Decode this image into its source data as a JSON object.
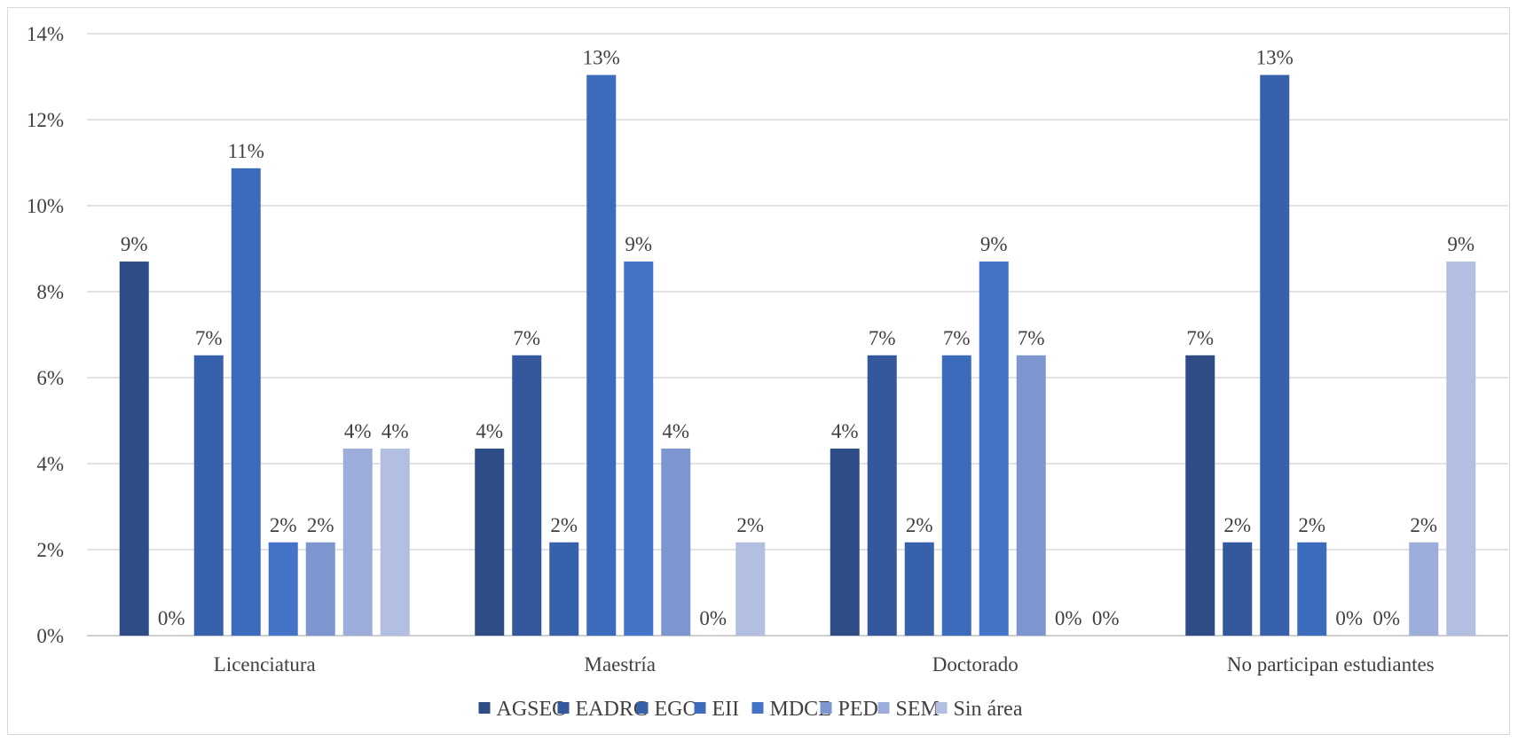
{
  "chart_data": {
    "type": "bar",
    "title": "",
    "xlabel": "",
    "ylabel": "",
    "categories": [
      "Licenciatura",
      "Maestría",
      "Doctorado",
      "No participan estudiantes"
    ],
    "ylim": [
      0,
      14
    ],
    "yticks": [
      "0%",
      "2%",
      "4%",
      "6%",
      "8%",
      "10%",
      "12%",
      "14%"
    ],
    "grid": true,
    "legend_position": "bottom",
    "series": [
      {
        "name": "AGSEO",
        "color": "#2e4d87",
        "values": [
          8.7,
          4.35,
          4.35,
          6.52
        ],
        "labels": [
          "9%",
          "4%",
          "4%",
          "7%"
        ]
      },
      {
        "name": "EADRC",
        "color": "#33589e",
        "values": [
          0,
          6.52,
          6.52,
          2.17
        ],
        "labels": [
          "0%",
          "7%",
          "7%",
          "2%"
        ]
      },
      {
        "name": "EGO",
        "color": "#3861ab",
        "values": [
          6.52,
          2.17,
          2.17,
          13.04
        ],
        "labels": [
          "7%",
          "2%",
          "2%",
          "13%"
        ]
      },
      {
        "name": "EII",
        "color": "#3d6bbb",
        "values": [
          10.87,
          13.04,
          6.52,
          2.17
        ],
        "labels": [
          "11%",
          "13%",
          "7%",
          "2%"
        ]
      },
      {
        "name": "MDCE",
        "color": "#4573c8",
        "values": [
          2.17,
          8.7,
          8.7,
          0
        ],
        "labels": [
          "2%",
          "9%",
          "9%",
          "0%"
        ]
      },
      {
        "name": "PED",
        "color": "#7d96d0",
        "values": [
          2.17,
          4.35,
          6.52,
          0
        ],
        "labels": [
          "2%",
          "4%",
          "7%",
          "0%"
        ]
      },
      {
        "name": "SEM",
        "color": "#9cadd9",
        "values": [
          4.35,
          0,
          0,
          2.17
        ],
        "labels": [
          "4%",
          "0%",
          "0%",
          "2%"
        ]
      },
      {
        "name": "Sin área",
        "color": "#b3bfe0",
        "values": [
          4.35,
          2.17,
          0,
          8.7
        ],
        "labels": [
          "4%",
          "2%",
          "0%",
          "9%"
        ]
      }
    ]
  }
}
